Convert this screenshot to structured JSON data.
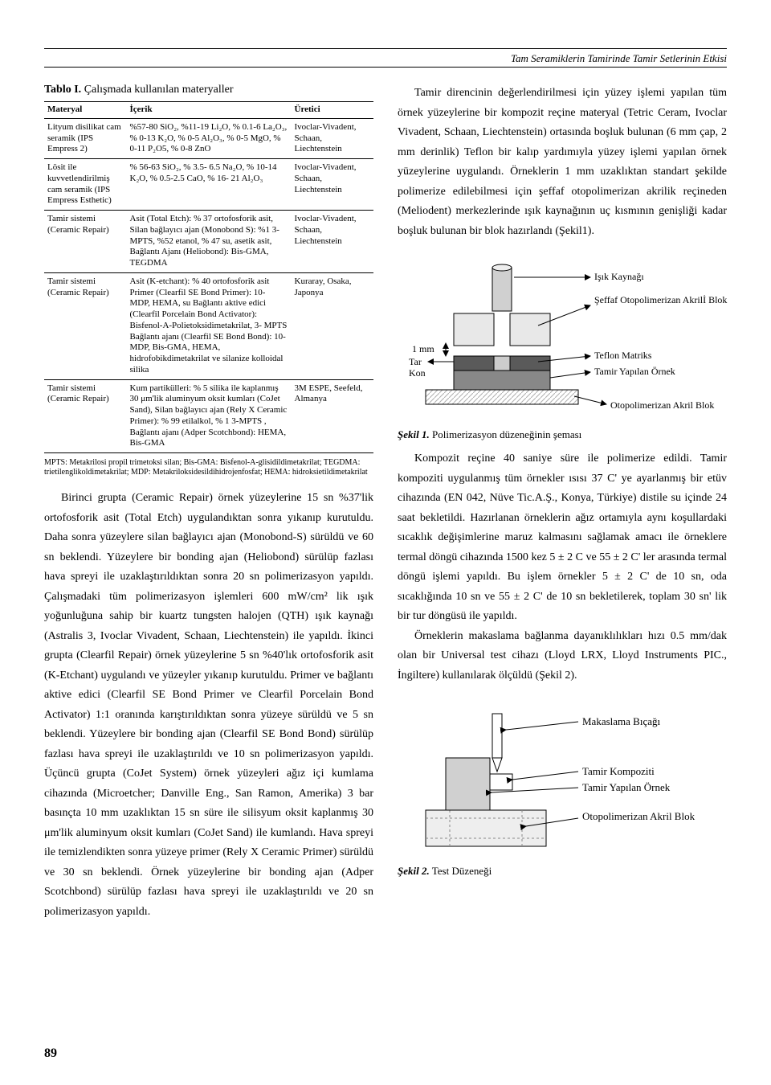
{
  "header": {
    "running_title": "Tam Seramiklerin Tamirinde Tamir Setlerinin Etkisi"
  },
  "table": {
    "caption_label": "Tablo I.",
    "caption_text": " Çalışmada kullanılan materyaller",
    "columns": [
      "Materyal",
      "İçerik",
      "Üretici"
    ],
    "rows": [
      {
        "material": "Lityum disilikat cam seramik (IPS Empress 2)",
        "content": "%57-80 SiO₂, %11-19 Li₂O, % 0.1-6 La₂O₃, % 0-13 K₂O, % 0-5 Al₂O₃, % 0-5 MgO, % 0-11 P₂O5, % 0-8 ZnO",
        "producer": "Ivoclar-Vivadent, Schaan, Liechtenstein"
      },
      {
        "material": "Lösit ile kuvvetlendirilmiş cam seramik (IPS Empress Esthetic)",
        "content": "% 56-63 SiO₂, % 3.5- 6.5 Na₂O, % 10-14 K₂O, % 0.5-2.5 CaO, % 16- 21 Al₂O₃",
        "producer": "Ivoclar-Vivadent, Schaan, Liechtenstein"
      },
      {
        "material": "Tamir sistemi (Ceramic Repair)",
        "content": "Asit (Total Etch): % 37 ortofosforik asit, Silan bağlayıcı ajan (Monobond S): %1 3- MPTS, %52 etanol, % 47 su, asetik asit, Bağlantı Ajanı (Heliobond): Bis-GMA, TEGDMA",
        "producer": "Ivoclar-Vivadent, Schaan, Liechtenstein"
      },
      {
        "material": "Tamir sistemi (Ceramic Repair)",
        "content": "Asit (K-etchant): % 40 ortofosforik asit Primer (Clearfil SE Bond Primer): 10- MDP, HEMA, su Bağlantı aktive edici (Clearfil Porcelain Bond Activator): Bisfenol-A-Polietoksidimetakrilat, 3- MPTS Bağlantı ajanı (Clearfil SE Bond Bond): 10-MDP, Bis-GMA, HEMA, hidrofobikdimetakrilat ve silanize kolloidal silika",
        "producer": "Kuraray, Osaka, Japonya"
      },
      {
        "material": "Tamir sistemi (Ceramic Repair)",
        "content": "Kum partikülleri: % 5 silika ile kaplanmış 30 μm'lik aluminyum oksit kumları (CoJet Sand), Silan bağlayıcı ajan (Rely X Ceramic Primer): % 99 etilalkol, % 1 3-MPTS , Bağlantı ajanı (Adper Scotchbond): HEMA, Bis-GMA",
        "producer": "3M ESPE, Seefeld, Almanya"
      }
    ],
    "footnote": "MPTS: Metakrilosi propil trimetoksi silan; Bis-GMA: Bisfenol-A-glisidildimetakrilat; TEGDMA: trietilenglikoldimetakrilat; MDP: Metakriloksidesildihidrojenfosfat; HEMA: hidroksietildimetakrilat"
  },
  "left_body": "Birinci grupta (Ceramic Repair) örnek yüzeylerine 15 sn %37'lik ortofosforik asit (Total Etch) uygulandıktan sonra yıkanıp kurutuldu. Daha sonra yüzeylere silan bağlayıcı ajan (Monobond-S) sürüldü ve 60 sn beklendi. Yüzeylere bir bonding ajan (Heliobond) sürülüp fazlası hava spreyi ile uzaklaştırıldıktan sonra 20 sn polimerizasyon yapıldı. Çalışmadaki tüm polimerizasyon işlemleri 600 mW/cm² lik ışık yoğunluğuna sahip bir kuartz tungsten halojen (QTH) ışık kaynağı (Astralis 3, Ivoclar Vivadent, Schaan, Liechtenstein) ile yapıldı. İkinci grupta (Clearfil Repair) örnek yüzeylerine 5 sn %40'lık ortofosforik asit (K-Etchant) uygulandı ve yüzeyler yıkanıp kurutuldu. Primer ve bağlantı aktive edici (Clearfil SE Bond Primer ve Clearfil Porcelain Bond Activator) 1:1 oranında karıştırıldıktan sonra yüzeye sürüldü ve 5 sn beklendi. Yüzeylere bir bonding ajan (Clearfil SE Bond Bond) sürülüp fazlası hava spreyi ile uzaklaştırıldı ve 10 sn polimerizasyon yapıldı. Üçüncü grupta (CoJet System) örnek yüzeyleri ağız içi kumlama cihazında (Microetcher; Danville Eng., San Ramon, Amerika) 3 bar basınçta 10 mm uzaklıktan 15 sn süre ile silisyum oksit kaplanmış 30 μm'lik aluminyum oksit kumları (CoJet Sand) ile kumlandı. Hava spreyi ile temizlendikten sonra yüzeye primer (Rely X Ceramic Primer) sürüldü ve 30 sn beklendi. Örnek yüzeylerine bir bonding ajan (Adper Scotchbond) sürülüp fazlası hava spreyi ile uzaklaştırıldı ve 20 sn polimerizasyon yapıldı.",
  "right_body_1": "Tamir direncinin değerlendirilmesi için yüzey işlemi yapılan tüm örnek yüzeylerine bir kompozit reçine materyal (Tetric Ceram, Ivoclar Vivadent, Schaan, Liechtenstein) ortasında boşluk bulunan (6 mm çap, 2 mm derinlik) Teflon bir kalıp yardımıyla yüzey işlemi yapılan örnek yüzeylerine uygulandı. Örneklerin 1 mm uzaklıktan standart şekilde polimerize edilebilmesi için şeffaf otopolimerizan akrilik reçineden (Meliodent) merkezlerinde ışık kaynağının uç kısmının genişliği kadar boşluk bulunan bir blok hazırlandı (Şekil1).",
  "right_body_2": "Kompozit reçine 40 saniye süre ile polimerize edildi. Tamir kompoziti uygulanmış tüm örnekler ısısı 37 C' ye ayarlanmış bir etüv cihazında (EN 042, Nüve Tic.A.Ş., Konya, Türkiye) distile su içinde 24 saat bekletildi. Hazırlanan örneklerin ağız ortamıyla aynı koşullardaki sıcaklık değişimlerine maruz kalmasını sağlamak amacı ile örneklere termal döngü cihazında 1500 kez 5 ± 2 C ve 55 ± 2 C' ler arasında termal döngü işlemi yapıldı. Bu işlem örnekler 5 ± 2 C' de 10 sn, oda sıcaklığında 10 sn ve 55 ± 2 C' de 10 sn bekletilerek, toplam 30 sn' lik bir tur döngüsü ile yapıldı.",
  "right_body_3": "Örneklerin makaslama bağlanma dayanıklılıkları hızı 0.5 mm/dak olan bir Universal test cihazı (Lloyd LRX, Lloyd Instruments PIC., İngiltere) kullanılarak ölçüldü (Şekil 2).",
  "fig1": {
    "caption_label": "Şekil 1.",
    "caption_text": " Polimerizasyon düzeneğinin şeması",
    "labels": {
      "isik": "Işık Kaynağı",
      "seffaf": "Şeffaf Otopolimerizan Akrilİ Blok",
      "teflon": "Teflon Matriks",
      "ornek": "Tamir Yapılan Örnek",
      "akril": "Otopolimerizan Akril Blok",
      "mm1": "1 mm",
      "tar": "Tar",
      "kon": "Kon"
    },
    "colors": {
      "blok": "#dcdcdc",
      "teflon": "#5a5a5a",
      "hatch": "#bfbfbf",
      "arrow": "#000000"
    }
  },
  "fig2": {
    "caption_label": "Şekil 2.",
    "caption_text": " Test Düzeneği",
    "labels": {
      "bicak": "Makaslama Bıçağı",
      "kompozit": "Tamir Kompoziti",
      "ornek": "Tamir Yapılan Örnek",
      "akril": "Otopolimerizan Akril Blok"
    },
    "colors": {
      "akr": "#eeeeee",
      "komp": "#ffffff",
      "orn": "#d0d0d0",
      "dash": "#888888"
    }
  },
  "page_number": "89"
}
